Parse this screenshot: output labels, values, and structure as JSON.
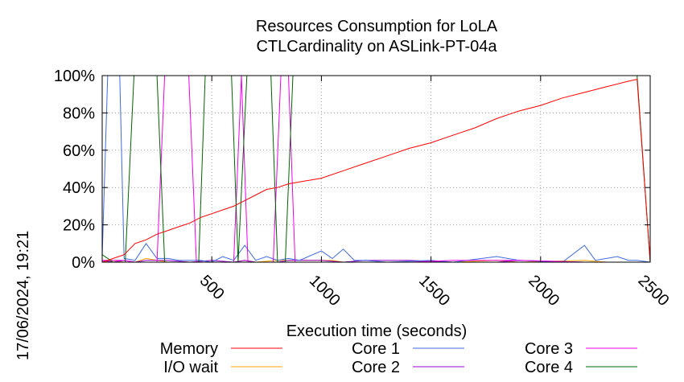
{
  "chart_data": {
    "type": "line",
    "title": [
      "Resources Consumption for LoLA",
      "CTLCardinality on ASLink-PT-04a"
    ],
    "xlabel": "Execution time (seconds)",
    "ylabel": "",
    "xlim": [
      0,
      2500
    ],
    "ylim": [
      0,
      100
    ],
    "x_ticks": [
      500,
      1000,
      1500,
      2000,
      2500
    ],
    "x_tick_labels": [
      "500",
      "1000",
      "1500",
      "2000",
      "2500"
    ],
    "y_ticks": [
      0,
      20,
      40,
      60,
      80,
      100
    ],
    "y_tick_labels": [
      "0%",
      "20%",
      "40%",
      "60%",
      "80%",
      "100%"
    ],
    "grid": true,
    "legend_position": "bottom",
    "timestamp": "17/06/2024, 19:21",
    "colors": {
      "Memory": "#ff0000",
      "I/O wait": "#ffa500",
      "Core 1": "#4169e1",
      "Core 2": "#9400d3",
      "Core 3": "#ee00ee",
      "Core 4": "#006400"
    },
    "series": [
      {
        "name": "Memory",
        "points": [
          [
            0,
            0
          ],
          [
            50,
            2
          ],
          [
            100,
            4
          ],
          [
            150,
            10
          ],
          [
            200,
            12
          ],
          [
            250,
            15
          ],
          [
            300,
            17
          ],
          [
            350,
            19
          ],
          [
            400,
            21
          ],
          [
            450,
            24
          ],
          [
            500,
            26
          ],
          [
            550,
            28
          ],
          [
            600,
            30
          ],
          [
            650,
            33
          ],
          [
            700,
            36
          ],
          [
            750,
            39
          ],
          [
            800,
            40
          ],
          [
            850,
            42
          ],
          [
            900,
            43
          ],
          [
            1000,
            45
          ],
          [
            1100,
            49
          ],
          [
            1200,
            53
          ],
          [
            1300,
            57
          ],
          [
            1400,
            61
          ],
          [
            1500,
            64
          ],
          [
            1600,
            68
          ],
          [
            1700,
            72
          ],
          [
            1800,
            77
          ],
          [
            1900,
            81
          ],
          [
            2000,
            84
          ],
          [
            2100,
            88
          ],
          [
            2200,
            91
          ],
          [
            2300,
            94
          ],
          [
            2400,
            97
          ],
          [
            2440,
            98
          ],
          [
            2500,
            0
          ]
        ]
      },
      {
        "name": "I/O wait",
        "points": [
          [
            0,
            0
          ],
          [
            50,
            1
          ],
          [
            100,
            0
          ],
          [
            150,
            0
          ],
          [
            200,
            2
          ],
          [
            250,
            1
          ],
          [
            300,
            0
          ],
          [
            400,
            0
          ],
          [
            500,
            0
          ],
          [
            600,
            0
          ],
          [
            650,
            1
          ],
          [
            700,
            0
          ],
          [
            800,
            1
          ],
          [
            900,
            1
          ],
          [
            1000,
            1
          ],
          [
            1050,
            1
          ],
          [
            1100,
            0
          ],
          [
            1200,
            0
          ],
          [
            1400,
            0
          ],
          [
            1600,
            0
          ],
          [
            1800,
            1
          ],
          [
            1900,
            0
          ],
          [
            2200,
            1
          ],
          [
            2300,
            0
          ],
          [
            2440,
            0
          ],
          [
            2500,
            0
          ]
        ]
      },
      {
        "name": "Core 1",
        "points": [
          [
            0,
            3
          ],
          [
            25,
            100
          ],
          [
            80,
            100
          ],
          [
            100,
            2
          ],
          [
            150,
            1
          ],
          [
            200,
            10
          ],
          [
            250,
            2
          ],
          [
            300,
            2
          ],
          [
            350,
            1
          ],
          [
            400,
            1
          ],
          [
            450,
            1
          ],
          [
            500,
            0
          ],
          [
            550,
            3
          ],
          [
            600,
            1
          ],
          [
            650,
            9
          ],
          [
            700,
            1
          ],
          [
            750,
            3
          ],
          [
            800,
            1
          ],
          [
            850,
            2
          ],
          [
            900,
            1
          ],
          [
            1000,
            6
          ],
          [
            1050,
            2
          ],
          [
            1100,
            7
          ],
          [
            1150,
            1
          ],
          [
            1200,
            1
          ],
          [
            1300,
            0
          ],
          [
            1500,
            1
          ],
          [
            1600,
            0
          ],
          [
            1800,
            3
          ],
          [
            1900,
            1
          ],
          [
            2100,
            0
          ],
          [
            2200,
            9
          ],
          [
            2250,
            1
          ],
          [
            2350,
            3
          ],
          [
            2400,
            1
          ],
          [
            2440,
            1
          ],
          [
            2500,
            0
          ]
        ]
      },
      {
        "name": "Core 2",
        "points": [
          [
            0,
            1
          ],
          [
            50,
            0
          ],
          [
            100,
            1
          ],
          [
            150,
            0
          ],
          [
            200,
            1
          ],
          [
            300,
            1
          ],
          [
            400,
            0
          ],
          [
            500,
            1
          ],
          [
            600,
            0
          ],
          [
            650,
            1
          ],
          [
            700,
            0
          ],
          [
            800,
            0
          ],
          [
            850,
            1
          ],
          [
            900,
            1
          ],
          [
            1000,
            1
          ],
          [
            1100,
            0
          ],
          [
            1200,
            1
          ],
          [
            1400,
            1
          ],
          [
            1600,
            0
          ],
          [
            1800,
            0
          ],
          [
            1900,
            1
          ],
          [
            2200,
            0
          ],
          [
            2400,
            0
          ],
          [
            2500,
            0
          ]
        ]
      },
      {
        "name": "Core 3",
        "points": [
          [
            0,
            1
          ],
          [
            100,
            1
          ],
          [
            150,
            0
          ],
          [
            250,
            0
          ],
          [
            285,
            100
          ],
          [
            395,
            100
          ],
          [
            430,
            0
          ],
          [
            600,
            0
          ],
          [
            635,
            100
          ],
          [
            665,
            0
          ],
          [
            780,
            0
          ],
          [
            815,
            100
          ],
          [
            850,
            100
          ],
          [
            880,
            0
          ],
          [
            1000,
            0
          ],
          [
            1200,
            0
          ],
          [
            1400,
            0
          ],
          [
            1600,
            1
          ],
          [
            1900,
            1
          ],
          [
            2200,
            0
          ],
          [
            2440,
            0
          ],
          [
            2500,
            0
          ]
        ]
      },
      {
        "name": "Core 4",
        "points": [
          [
            0,
            4
          ],
          [
            50,
            0
          ],
          [
            105,
            0
          ],
          [
            145,
            100
          ],
          [
            250,
            100
          ],
          [
            285,
            0
          ],
          [
            440,
            0
          ],
          [
            470,
            100
          ],
          [
            590,
            100
          ],
          [
            620,
            0
          ],
          [
            660,
            100
          ],
          [
            770,
            100
          ],
          [
            800,
            0
          ],
          [
            835,
            0
          ],
          [
            870,
            100
          ],
          [
            2440,
            100
          ],
          [
            2500,
            0
          ]
        ]
      }
    ]
  }
}
